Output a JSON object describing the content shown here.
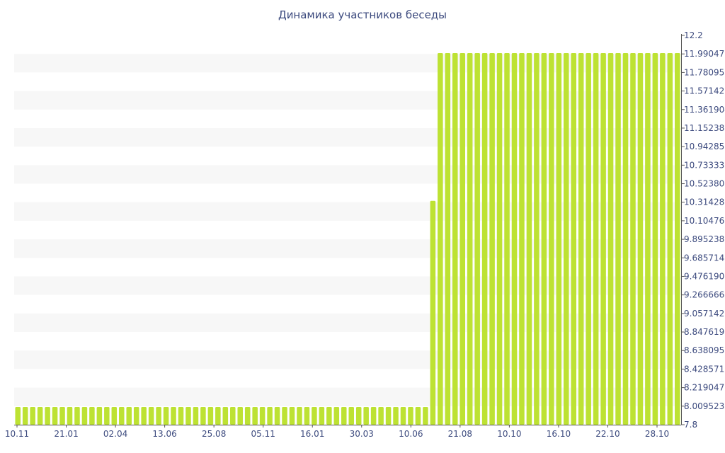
{
  "chart_data": {
    "type": "bar",
    "title": "Динамика участников беседы",
    "xlabel": "",
    "ylabel": "",
    "ylim": [
      7.8,
      12.2
    ],
    "grid": "horizontal-bands",
    "legend": "none",
    "bar_color": "#bde233",
    "band_color": "#f7f7f7",
    "label_color": "#3c4a7e",
    "y_ticks": [
      "7.8",
      "8.009523",
      "8.219047",
      "8.428571",
      "8.638095",
      "8.847619",
      "9.057142",
      "9.266666",
      "9.476190",
      "9.685714",
      "9.895238",
      "10.104761",
      "10.314285",
      "10.523809",
      "10.733333",
      "10.942857",
      "11.152380",
      "11.361904",
      "11.571428",
      "11.780952",
      "11.990476",
      "12.2"
    ],
    "x_ticks": [
      "10.11",
      "21.01",
      "02.04",
      "13.06",
      "25.08",
      "05.11",
      "16.01",
      "30.03",
      "10.06",
      "21.08",
      "10.10",
      "16.10",
      "22.10",
      "28.10"
    ],
    "values": [
      8,
      8,
      8,
      8,
      8,
      8,
      8,
      8,
      8,
      8,
      8,
      8,
      8,
      8,
      8,
      8,
      8,
      8,
      8,
      8,
      8,
      8,
      8,
      8,
      8,
      8,
      8,
      8,
      8,
      8,
      8,
      8,
      8,
      8,
      8,
      8,
      8,
      8,
      8,
      8,
      8,
      8,
      8,
      8,
      8,
      8,
      8,
      8,
      8,
      8,
      8,
      8,
      8,
      8,
      8,
      8,
      10.33,
      12,
      12,
      12,
      12,
      12,
      12,
      12,
      12,
      12,
      12,
      12,
      12,
      12,
      12,
      12,
      12,
      12,
      12,
      12,
      12,
      12,
      12,
      12,
      12,
      12,
      12,
      12,
      12,
      12,
      12,
      12,
      12,
      12
    ]
  }
}
